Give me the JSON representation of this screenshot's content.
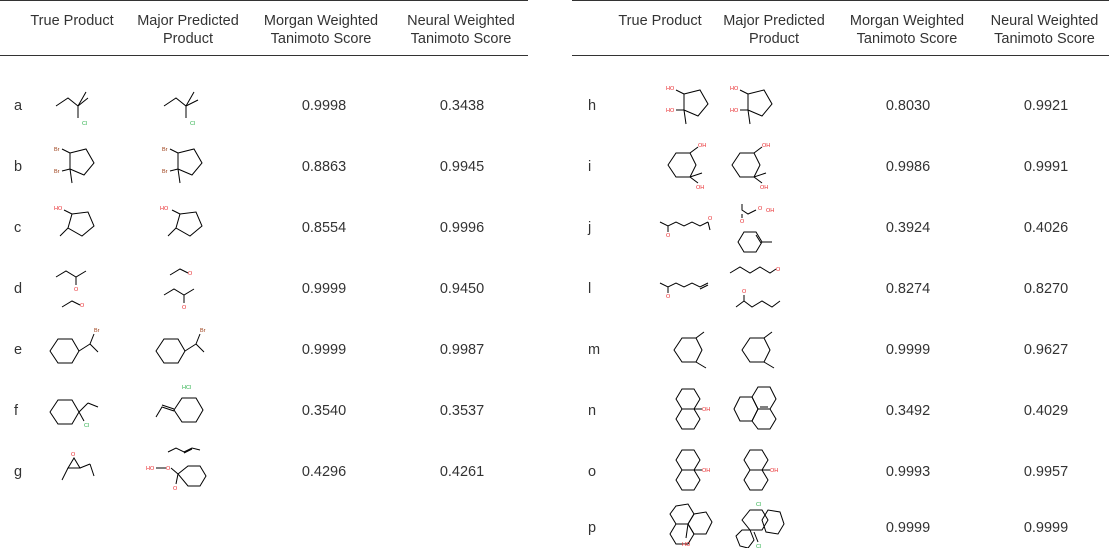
{
  "headers": {
    "true_product": "True Product",
    "major_predicted": "Major Predicted\nProduct",
    "morgan": "Morgan Weighted\nTanimoto Score",
    "neural": "Neural Weighted\nTanimoto Score"
  },
  "left_rows": [
    {
      "label": "a",
      "morgan": "0.9998",
      "neural": "0.3438"
    },
    {
      "label": "b",
      "morgan": "0.8863",
      "neural": "0.9945"
    },
    {
      "label": "c",
      "morgan": "0.8554",
      "neural": "0.9996"
    },
    {
      "label": "d",
      "morgan": "0.9999",
      "neural": "0.9450"
    },
    {
      "label": "e",
      "morgan": "0.9999",
      "neural": "0.9987"
    },
    {
      "label": "f",
      "morgan": "0.3540",
      "neural": "0.3537"
    },
    {
      "label": "g",
      "morgan": "0.4296",
      "neural": "0.4261"
    }
  ],
  "right_rows": [
    {
      "label": "h",
      "morgan": "0.8030",
      "neural": "0.9921"
    },
    {
      "label": "i",
      "morgan": "0.9986",
      "neural": "0.9991"
    },
    {
      "label": "j",
      "morgan": "0.3924",
      "neural": "0.4026"
    },
    {
      "label": "l",
      "morgan": "0.8274",
      "neural": "0.8270"
    },
    {
      "label": "m",
      "morgan": "0.9999",
      "neural": "0.9627"
    },
    {
      "label": "n",
      "morgan": "0.3492",
      "neural": "0.4029"
    },
    {
      "label": "o",
      "morgan": "0.9993",
      "neural": "0.9957"
    },
    {
      "label": "p",
      "morgan": "0.9999",
      "neural": "0.9999"
    }
  ],
  "atom_labels": {
    "cl": "Cl",
    "br": "Br",
    "ho": "HO",
    "o": "O",
    "oh": "OH",
    "hcl": "HCl"
  },
  "colors": {
    "oxygen": "#e8282b",
    "bromine": "#9a3a12",
    "chlorine": "#2bb04a"
  }
}
